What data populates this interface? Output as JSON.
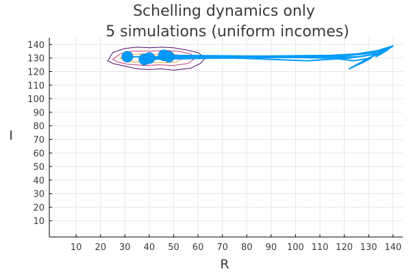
{
  "chart_data": {
    "type": "line",
    "title_lines": [
      "Schelling dynamics only",
      "5 simulations (uniform incomes)"
    ],
    "xlabel": "R",
    "ylabel": "I",
    "xlim": [
      -1,
      144
    ],
    "ylim": [
      -2,
      145
    ],
    "xticks": [
      10,
      20,
      30,
      40,
      50,
      60,
      70,
      80,
      90,
      100,
      110,
      120,
      130,
      140
    ],
    "yticks": [
      10,
      20,
      30,
      40,
      50,
      60,
      70,
      80,
      90,
      100,
      110,
      120,
      130,
      140
    ],
    "grid": true,
    "legend": "none",
    "colors": {
      "trajectory": "#009af9",
      "contour_outer": "#4b0c6b",
      "contour_mid": "#c03a76",
      "contour_inner": "#e6a23c",
      "axis": "#000000",
      "grid": "#e6e6e6",
      "text": "#3a3a3a"
    },
    "contours": [
      {
        "level": "outer",
        "points": [
          [
            23,
            128
          ],
          [
            25,
            134
          ],
          [
            30,
            137
          ],
          [
            35,
            138
          ],
          [
            40,
            137.5
          ],
          [
            45,
            138
          ],
          [
            50,
            137.5
          ],
          [
            55,
            136
          ],
          [
            60,
            134
          ],
          [
            63,
            130
          ],
          [
            61,
            126
          ],
          [
            57,
            122.5
          ],
          [
            50,
            121
          ],
          [
            45,
            122
          ],
          [
            40,
            121.5
          ],
          [
            35,
            122
          ],
          [
            30,
            124
          ],
          [
            25,
            126
          ]
        ]
      },
      {
        "level": "mid",
        "points": [
          [
            25,
            129
          ],
          [
            28,
            133
          ],
          [
            33,
            135
          ],
          [
            40,
            135
          ],
          [
            46,
            135.5
          ],
          [
            52,
            135
          ],
          [
            57,
            133
          ],
          [
            59,
            130
          ],
          [
            56,
            126
          ],
          [
            50,
            124.5
          ],
          [
            44,
            125
          ],
          [
            38,
            124.5
          ],
          [
            31,
            125.5
          ],
          [
            27,
            127
          ]
        ]
      },
      {
        "level": "inner",
        "points": [
          [
            28,
            130
          ],
          [
            31,
            132.5
          ],
          [
            36,
            133
          ],
          [
            42,
            132.5
          ],
          [
            48,
            133
          ],
          [
            53,
            132
          ],
          [
            54,
            129.5
          ],
          [
            51,
            127
          ],
          [
            46,
            126.5
          ],
          [
            40,
            127
          ],
          [
            34,
            127
          ],
          [
            30,
            128
          ]
        ]
      }
    ],
    "trajectories": [
      {
        "points": [
          [
            31,
            131
          ],
          [
            60,
            131
          ],
          [
            90,
            131.5
          ],
          [
            115,
            132
          ],
          [
            125,
            133
          ],
          [
            132,
            135
          ],
          [
            136,
            136
          ],
          [
            134,
            135
          ],
          [
            138,
            137
          ],
          [
            135,
            134
          ]
        ],
        "start_marker": true
      },
      {
        "points": [
          [
            38,
            129
          ],
          [
            70,
            130
          ],
          [
            100,
            130.5
          ],
          [
            120,
            131.5
          ],
          [
            128,
            133
          ],
          [
            133,
            134
          ],
          [
            137,
            136
          ],
          [
            135,
            133
          ],
          [
            139,
            138
          ]
        ],
        "start_marker": true
      },
      {
        "points": [
          [
            40,
            130
          ],
          [
            75,
            130
          ],
          [
            105,
            128
          ],
          [
            122,
            130
          ],
          [
            130,
            132
          ],
          [
            135,
            133
          ],
          [
            133,
            131
          ],
          [
            137,
            135
          ]
        ],
        "start_marker": true
      },
      {
        "points": [
          [
            46,
            132
          ],
          [
            80,
            131.5
          ],
          [
            110,
            131
          ],
          [
            124,
            128
          ],
          [
            131,
            130
          ],
          [
            128,
            127
          ],
          [
            122,
            122
          ],
          [
            130,
            130
          ],
          [
            134,
            133
          ],
          [
            138,
            136
          ]
        ],
        "start_marker": true
      },
      {
        "points": [
          [
            48,
            131
          ],
          [
            85,
            131
          ],
          [
            112,
            130
          ],
          [
            126,
            131
          ],
          [
            133,
            133
          ],
          [
            136,
            134
          ],
          [
            140,
            139
          ],
          [
            131,
            134
          ],
          [
            137,
            137
          ],
          [
            134,
            134
          ]
        ],
        "start_marker": true
      }
    ]
  }
}
